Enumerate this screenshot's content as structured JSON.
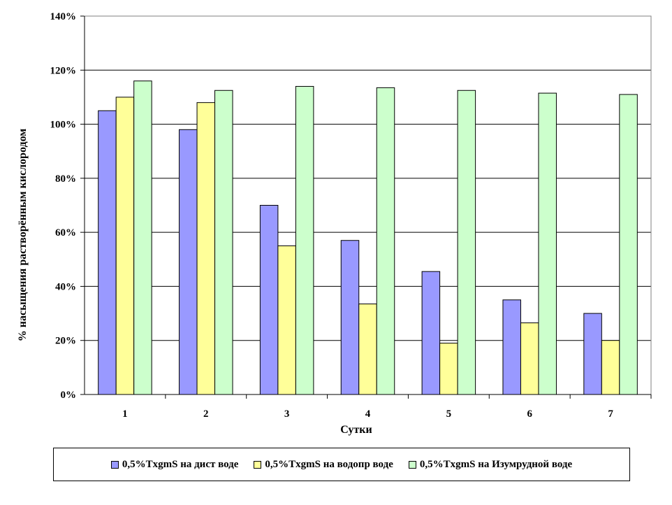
{
  "chart_data": {
    "type": "bar",
    "title": "",
    "xlabel": "Сутки",
    "ylabel": "% насыщения растворённым кислородом",
    "categories": [
      "1",
      "2",
      "3",
      "4",
      "5",
      "6",
      "7"
    ],
    "ylim": [
      0,
      140
    ],
    "y_ticks": [
      "0%",
      "20%",
      "40%",
      "60%",
      "80%",
      "100%",
      "120%",
      "140%"
    ],
    "grid": true,
    "legend_position": "bottom",
    "series": [
      {
        "name": "0,5%TxgmS на дист воде",
        "color": "#9999ff",
        "values": [
          105,
          98,
          70,
          57,
          45.5,
          35,
          30
        ]
      },
      {
        "name": "0,5%TxgmS на водопр воде",
        "color": "#ffff99",
        "values": [
          110,
          108,
          55,
          33.5,
          19,
          26.5,
          20
        ]
      },
      {
        "name": "0,5%TxgmS на Изумрудной воде",
        "color": "#ccffcc",
        "values": [
          116,
          112.5,
          114,
          113.5,
          112.5,
          111.5,
          111
        ]
      }
    ]
  }
}
